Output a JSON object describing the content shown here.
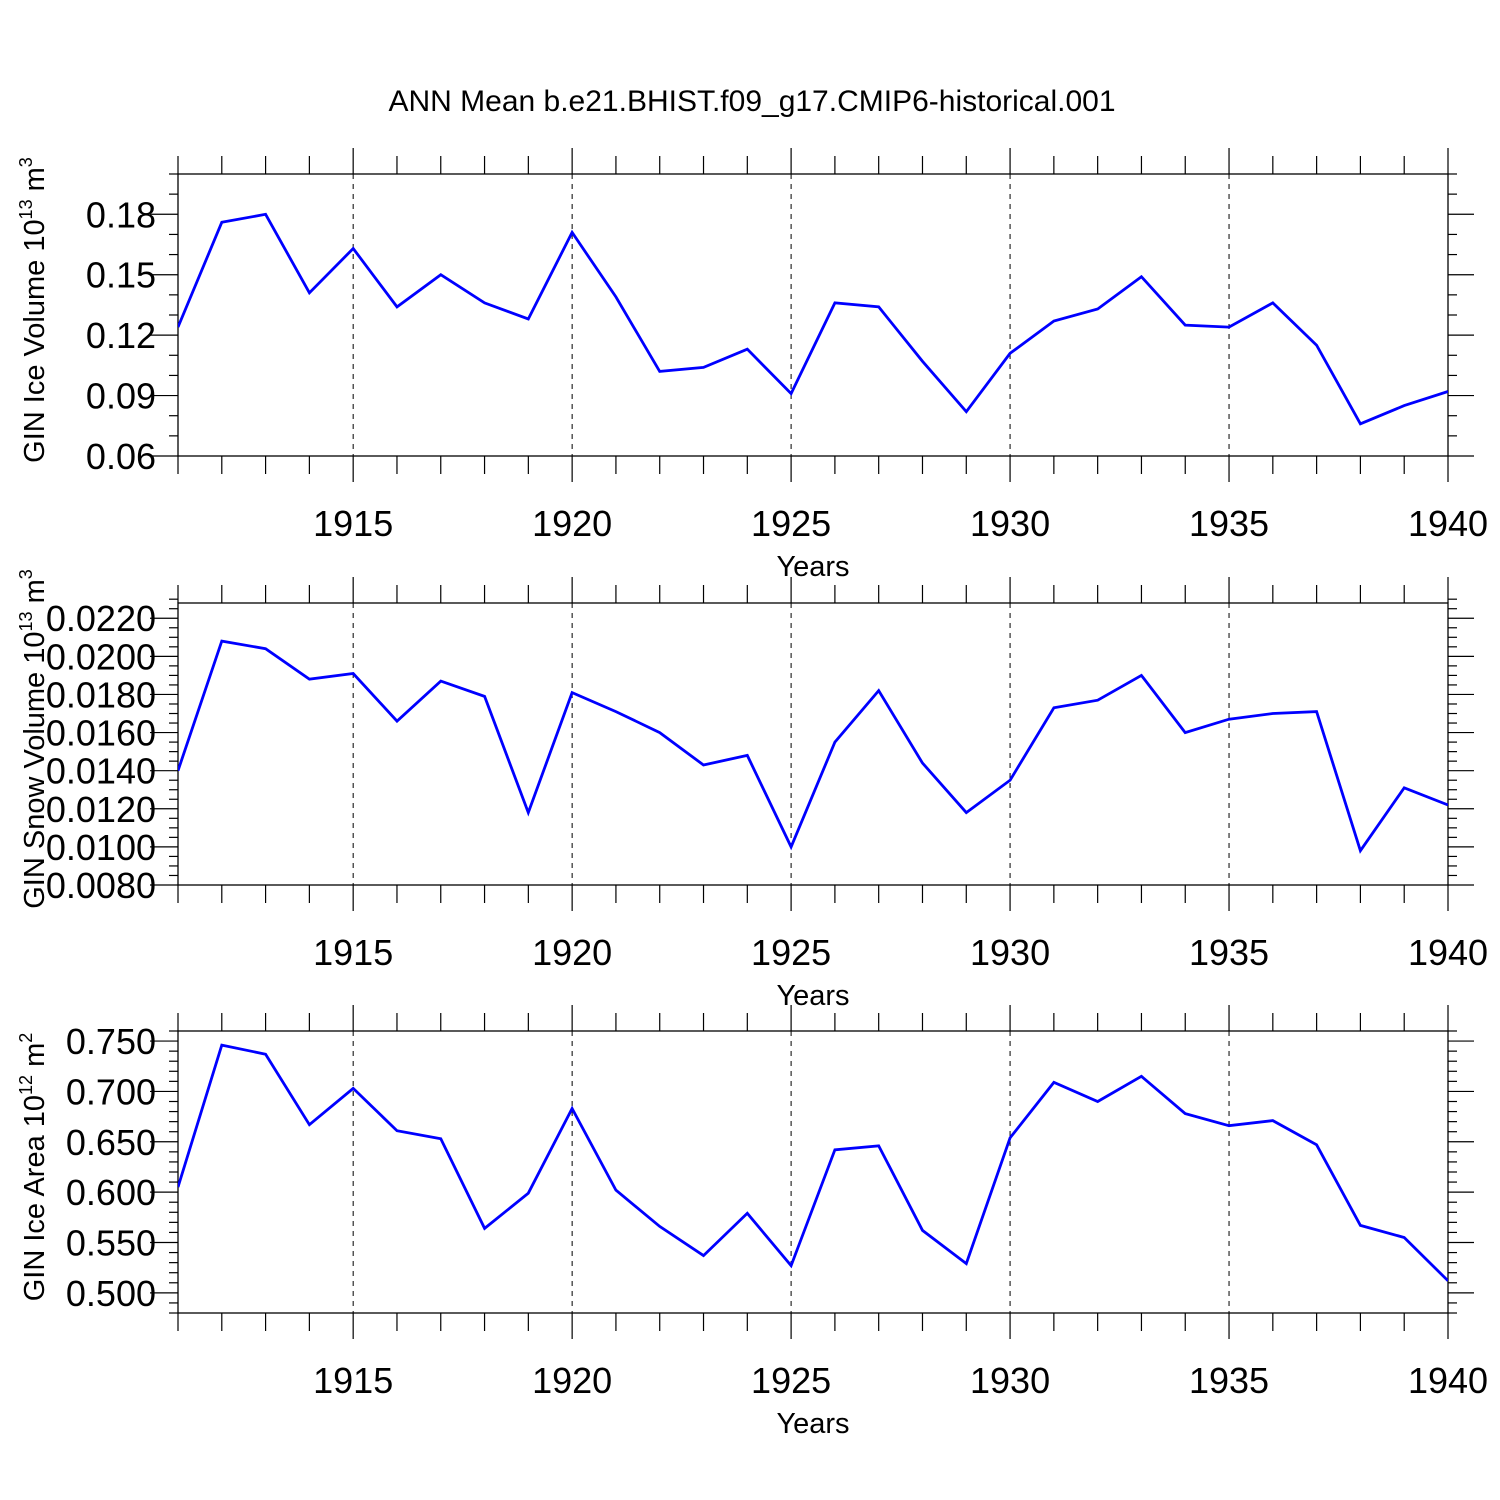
{
  "title": "ANN Mean b.e21.BHIST.f09_g17.CMIP6-historical.001",
  "chart_data": [
    {
      "type": "line",
      "ylabel": "GIN Ice Volume 10",
      "ylabel_exp": "13",
      "ylabel_unit": " m",
      "ylabel_unit_exp": "3",
      "xlabel": "Years",
      "xlim": [
        1911,
        1940
      ],
      "ylim": [
        0.06,
        0.2
      ],
      "yticks": [
        0.06,
        0.09,
        0.12,
        0.15,
        0.18
      ],
      "yticklabels": [
        "0.06",
        "0.09",
        "0.12",
        "0.15",
        "0.18"
      ],
      "yminor": 0.01,
      "xticks": [
        1915,
        1920,
        1925,
        1930,
        1935,
        1940
      ],
      "xticklabels": [
        "1915",
        "1920",
        "1925",
        "1930",
        "1935",
        "1940"
      ],
      "grid": "dashed vertical at major x ticks",
      "color": "#0000ff",
      "x": [
        1911,
        1912,
        1913,
        1914,
        1915,
        1916,
        1917,
        1918,
        1919,
        1920,
        1921,
        1922,
        1923,
        1924,
        1925,
        1926,
        1927,
        1928,
        1929,
        1930,
        1931,
        1932,
        1933,
        1934,
        1935,
        1936,
        1937,
        1938,
        1939,
        1940
      ],
      "values": [
        0.124,
        0.176,
        0.18,
        0.141,
        0.163,
        0.134,
        0.15,
        0.136,
        0.128,
        0.171,
        0.139,
        0.102,
        0.104,
        0.113,
        0.091,
        0.136,
        0.134,
        0.107,
        0.082,
        0.111,
        0.127,
        0.133,
        0.149,
        0.125,
        0.124,
        0.136,
        0.115,
        0.076,
        0.085,
        0.092
      ]
    },
    {
      "type": "line",
      "ylabel": "GIN Snow Volume 10",
      "ylabel_exp": "13",
      "ylabel_unit": " m",
      "ylabel_unit_exp": "3",
      "xlabel": "Years",
      "xlim": [
        1911,
        1940
      ],
      "ylim": [
        0.008,
        0.0228
      ],
      "yticks": [
        0.008,
        0.01,
        0.012,
        0.014,
        0.016,
        0.018,
        0.02,
        0.022
      ],
      "yticklabels": [
        "0.0080",
        "0.0100",
        "0.0120",
        "0.0140",
        "0.0160",
        "0.0180",
        "0.0200",
        "0.0220"
      ],
      "yminor": 0.0005,
      "xticks": [
        1915,
        1920,
        1925,
        1930,
        1935,
        1940
      ],
      "xticklabels": [
        "1915",
        "1920",
        "1925",
        "1930",
        "1935",
        "1940"
      ],
      "grid": "dashed vertical at major x ticks",
      "color": "#0000ff",
      "x": [
        1911,
        1912,
        1913,
        1914,
        1915,
        1916,
        1917,
        1918,
        1919,
        1920,
        1921,
        1922,
        1923,
        1924,
        1925,
        1926,
        1927,
        1928,
        1929,
        1930,
        1931,
        1932,
        1933,
        1934,
        1935,
        1936,
        1937,
        1938,
        1939,
        1940
      ],
      "values": [
        0.014,
        0.0208,
        0.0204,
        0.0188,
        0.0191,
        0.0166,
        0.0187,
        0.0179,
        0.0118,
        0.0181,
        0.0171,
        0.016,
        0.0143,
        0.0148,
        0.01,
        0.0155,
        0.0182,
        0.0144,
        0.0118,
        0.0135,
        0.0173,
        0.0177,
        0.019,
        0.016,
        0.0167,
        0.017,
        0.0171,
        0.0098,
        0.0131,
        0.0122
      ]
    },
    {
      "type": "line",
      "ylabel": "GIN Ice Area 10",
      "ylabel_exp": "12",
      "ylabel_unit": " m",
      "ylabel_unit_exp": "2",
      "xlabel": "Years",
      "xlim": [
        1911,
        1940
      ],
      "ylim": [
        0.48,
        0.76
      ],
      "yticks": [
        0.5,
        0.55,
        0.6,
        0.65,
        0.7,
        0.75
      ],
      "yticklabels": [
        "0.500",
        "0.550",
        "0.600",
        "0.650",
        "0.700",
        "0.750"
      ],
      "yminor": 0.01,
      "xticks": [
        1915,
        1920,
        1925,
        1930,
        1935,
        1940
      ],
      "xticklabels": [
        "1915",
        "1920",
        "1925",
        "1930",
        "1935",
        "1940"
      ],
      "grid": "dashed vertical at major x ticks",
      "color": "#0000ff",
      "x": [
        1911,
        1912,
        1913,
        1914,
        1915,
        1916,
        1917,
        1918,
        1919,
        1920,
        1921,
        1922,
        1923,
        1924,
        1925,
        1926,
        1927,
        1928,
        1929,
        1930,
        1931,
        1932,
        1933,
        1934,
        1935,
        1936,
        1937,
        1938,
        1939,
        1940
      ],
      "values": [
        0.605,
        0.746,
        0.737,
        0.667,
        0.703,
        0.661,
        0.653,
        0.564,
        0.599,
        0.683,
        0.602,
        0.566,
        0.537,
        0.579,
        0.527,
        0.642,
        0.646,
        0.562,
        0.529,
        0.654,
        0.709,
        0.69,
        0.715,
        0.678,
        0.666,
        0.671,
        0.647,
        0.567,
        0.555,
        0.512
      ]
    }
  ]
}
